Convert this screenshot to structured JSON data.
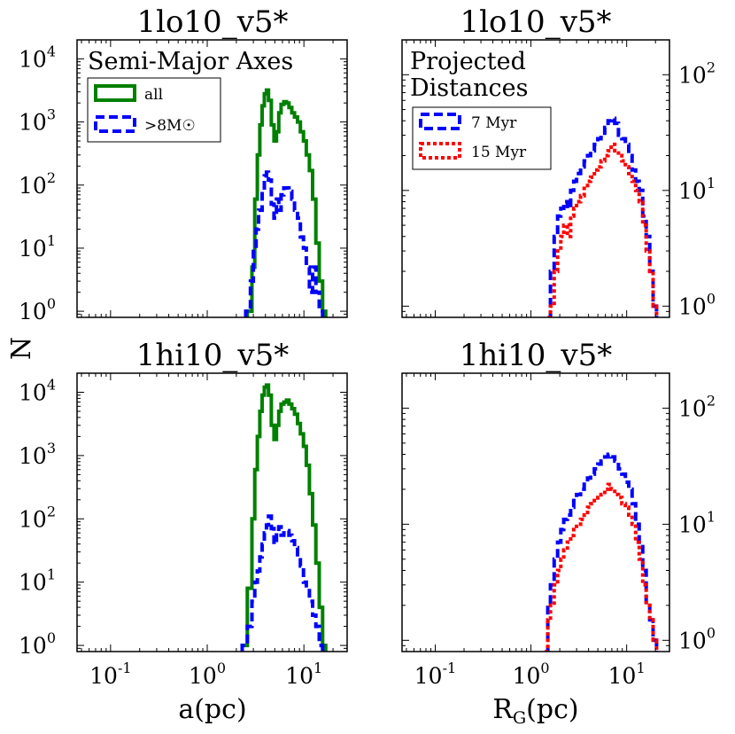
{
  "figure": {
    "ylabel": "N",
    "xlabel_left": "a(pc)",
    "xlabel_right_main": "R",
    "xlabel_right_sub": "G",
    "xlabel_right_rest": "(pc)"
  },
  "chart_data": [
    {
      "type": "line",
      "step": true,
      "title": "1lo10_v5*",
      "textbox": "Semi-Major Axes",
      "xscale": "log",
      "yscale": "log",
      "xlim": [
        0.045,
        28
      ],
      "ylim": [
        0.8,
        20000
      ],
      "xticks": [
        {
          "base": "10",
          "exp": "-1"
        },
        {
          "base": "10",
          "exp": "0"
        },
        {
          "base": "10",
          "exp": "1"
        }
      ],
      "yticks": [
        {
          "base": "10",
          "exp": "0",
          "v": 1
        },
        {
          "base": "10",
          "exp": "1",
          "v": 10
        },
        {
          "base": "10",
          "exp": "2",
          "v": 100
        },
        {
          "base": "10",
          "exp": "3",
          "v": 1000
        },
        {
          "base": "10",
          "exp": "4",
          "v": 10000
        }
      ],
      "yaxis_side": "left",
      "show_xticklabels": false,
      "legend": {
        "location": "upper-left",
        "entries": [
          "all",
          ">8M☉"
        ]
      },
      "series": [
        {
          "name": "all",
          "color": "#008000",
          "dash": "solid",
          "x": [
            2.6,
            2.9,
            3.1,
            3.3,
            3.5,
            3.7,
            3.9,
            4.1,
            4.3,
            4.6,
            4.9,
            5.2,
            5.5,
            5.8,
            6.2,
            6.6,
            7.0,
            7.5,
            8.0,
            8.6,
            9.2,
            9.9,
            10.6,
            11.4,
            12.3,
            13.3,
            14.4,
            15.6,
            16.8
          ],
          "y": [
            1,
            5,
            60,
            300,
            900,
            1800,
            2800,
            3200,
            2200,
            900,
            500,
            700,
            1400,
            1900,
            2100,
            2000,
            1700,
            1400,
            1200,
            1000,
            700,
            500,
            300,
            170,
            60,
            12,
            3,
            1,
            0.8
          ]
        },
        {
          "name": ">8M☉",
          "color": "#0000ff",
          "dash": "dashed",
          "x": [
            2.5,
            2.8,
            3.0,
            3.2,
            3.4,
            3.7,
            3.9,
            4.1,
            4.3,
            4.6,
            4.9,
            5.2,
            5.5,
            5.8,
            6.2,
            6.6,
            7.0,
            7.5,
            8.0,
            8.6,
            9.2,
            9.9,
            10.6,
            11.4,
            12.3,
            13.3,
            14.4,
            15.6
          ],
          "y": [
            1,
            3,
            10,
            20,
            40,
            80,
            140,
            160,
            120,
            50,
            30,
            60,
            40,
            70,
            90,
            90,
            80,
            60,
            40,
            30,
            15,
            10,
            5,
            2,
            5,
            2,
            1,
            0.8
          ]
        }
      ]
    },
    {
      "type": "line",
      "step": true,
      "title": "1lo10_v5*",
      "textbox": "Projected Distances",
      "textbox_lines": [
        "Projected",
        "Distances"
      ],
      "xscale": "log",
      "yscale": "log",
      "xlim": [
        0.045,
        28
      ],
      "ylim": [
        0.8,
        200
      ],
      "xticks": [
        {
          "base": "10",
          "exp": "-1"
        },
        {
          "base": "10",
          "exp": "0"
        },
        {
          "base": "10",
          "exp": "1"
        }
      ],
      "yticks": [
        {
          "base": "10",
          "exp": "0",
          "v": 1
        },
        {
          "base": "10",
          "exp": "1",
          "v": 10
        },
        {
          "base": "10",
          "exp": "2",
          "v": 100
        }
      ],
      "yaxis_side": "right",
      "show_xticklabels": false,
      "legend": {
        "location": "upper-left",
        "entries": [
          "7 Myr",
          "15 Myr"
        ]
      },
      "series": [
        {
          "name": "7 Myr",
          "color": "#0000ff",
          "dash": "dashed",
          "x": [
            1.5,
            1.6,
            1.75,
            1.9,
            2.05,
            2.2,
            2.4,
            2.6,
            2.8,
            3.0,
            3.3,
            3.6,
            3.9,
            4.2,
            4.6,
            5.0,
            5.4,
            5.9,
            6.4,
            6.9,
            7.5,
            8.2,
            8.9,
            9.7,
            10.5,
            11.4,
            12.4,
            13.5,
            14.7,
            16.0,
            17.4,
            18.9,
            20.5
          ],
          "y": [
            0.8,
            2,
            4,
            6,
            7,
            8,
            7,
            10,
            12,
            14,
            16,
            18,
            20,
            22,
            25,
            28,
            30,
            35,
            40,
            42,
            38,
            30,
            28,
            25,
            20,
            15,
            12,
            10,
            6,
            4,
            2,
            1,
            0.8
          ]
        },
        {
          "name": "15 Myr",
          "color": "#ff0000",
          "dash": "dotted",
          "x": [
            1.5,
            1.6,
            1.75,
            1.9,
            2.05,
            2.2,
            2.4,
            2.6,
            2.8,
            3.0,
            3.3,
            3.6,
            3.9,
            4.2,
            4.6,
            5.0,
            5.4,
            5.9,
            6.4,
            6.9,
            7.5,
            8.2,
            8.9,
            9.7,
            10.5,
            11.4,
            12.4,
            13.5,
            14.7,
            16.0,
            17.4,
            18.9,
            20.5
          ],
          "y": [
            0.8,
            1,
            2,
            3,
            4,
            5,
            4,
            6,
            7,
            8,
            9,
            11,
            12,
            13,
            15,
            16,
            18,
            20,
            22,
            25,
            22,
            20,
            18,
            16,
            14,
            12,
            10,
            8,
            5,
            3,
            2,
            1,
            0.8
          ]
        }
      ]
    },
    {
      "type": "line",
      "step": true,
      "title": "1hi10_v5*",
      "xscale": "log",
      "yscale": "log",
      "xlim": [
        0.045,
        28
      ],
      "ylim": [
        0.8,
        20000
      ],
      "xticks": [
        {
          "base": "10",
          "exp": "-1"
        },
        {
          "base": "10",
          "exp": "0"
        },
        {
          "base": "10",
          "exp": "1"
        }
      ],
      "yticks": [
        {
          "base": "10",
          "exp": "0",
          "v": 1
        },
        {
          "base": "10",
          "exp": "1",
          "v": 10
        },
        {
          "base": "10",
          "exp": "2",
          "v": 100
        },
        {
          "base": "10",
          "exp": "3",
          "v": 1000
        },
        {
          "base": "10",
          "exp": "4",
          "v": 10000
        }
      ],
      "yaxis_side": "left",
      "show_xticklabels": true,
      "series": [
        {
          "name": "all",
          "color": "#008000",
          "dash": "solid",
          "x": [
            2.3,
            2.6,
            2.9,
            3.1,
            3.3,
            3.5,
            3.7,
            3.9,
            4.1,
            4.3,
            4.6,
            4.9,
            5.2,
            5.5,
            5.8,
            6.2,
            6.6,
            7.0,
            7.5,
            8.0,
            8.6,
            9.2,
            9.9,
            10.6,
            11.4,
            12.3,
            13.3,
            14.4,
            15.6,
            16.8
          ],
          "y": [
            1,
            8,
            100,
            600,
            2000,
            5000,
            9000,
            12000,
            13000,
            9000,
            3000,
            1800,
            3000,
            5000,
            6500,
            7000,
            7500,
            6500,
            5500,
            4500,
            3200,
            2200,
            1400,
            700,
            250,
            80,
            20,
            4,
            1,
            0.8
          ]
        },
        {
          "name": ">8M☉",
          "color": "#0000ff",
          "dash": "dashed",
          "x": [
            2.3,
            2.6,
            2.9,
            3.1,
            3.3,
            3.5,
            3.7,
            3.9,
            4.1,
            4.3,
            4.6,
            4.9,
            5.2,
            5.5,
            5.8,
            6.2,
            6.6,
            7.0,
            7.5,
            8.0,
            8.6,
            9.2,
            9.9,
            10.6,
            11.4,
            12.3,
            13.3,
            14.4,
            15.6
          ],
          "y": [
            1,
            2,
            5,
            10,
            15,
            25,
            40,
            60,
            80,
            110,
            70,
            40,
            60,
            75,
            55,
            60,
            65,
            55,
            45,
            35,
            25,
            18,
            10,
            8,
            5,
            3,
            2,
            1,
            0.8
          ]
        }
      ]
    },
    {
      "type": "line",
      "step": true,
      "title": "1hi10_v5*",
      "xscale": "log",
      "yscale": "log",
      "xlim": [
        0.045,
        28
      ],
      "ylim": [
        0.8,
        200
      ],
      "xticks": [
        {
          "base": "10",
          "exp": "-1"
        },
        {
          "base": "10",
          "exp": "0"
        },
        {
          "base": "10",
          "exp": "1"
        }
      ],
      "yticks": [
        {
          "base": "10",
          "exp": "0",
          "v": 1
        },
        {
          "base": "10",
          "exp": "1",
          "v": 10
        },
        {
          "base": "10",
          "exp": "2",
          "v": 100
        }
      ],
      "yaxis_side": "right",
      "show_xticklabels": true,
      "series": [
        {
          "name": "7 Myr",
          "color": "#0000ff",
          "dash": "dashed",
          "x": [
            1.4,
            1.5,
            1.6,
            1.75,
            1.9,
            2.05,
            2.2,
            2.4,
            2.6,
            2.8,
            3.0,
            3.3,
            3.6,
            3.9,
            4.2,
            4.6,
            5.0,
            5.4,
            5.9,
            6.4,
            6.9,
            7.5,
            8.2,
            8.9,
            9.7,
            10.5,
            11.4,
            12.4,
            13.5,
            14.7,
            16.0,
            17.4,
            18.9,
            20.5
          ],
          "y": [
            0.8,
            2,
            3,
            5,
            7,
            9,
            11,
            12,
            14,
            16,
            18,
            20,
            23,
            25,
            27,
            30,
            33,
            35,
            38,
            40,
            38,
            35,
            30,
            27,
            23,
            20,
            15,
            10,
            7,
            4,
            2,
            1.5,
            1,
            0.8
          ]
        },
        {
          "name": "15 Myr",
          "color": "#ff0000",
          "dash": "dotted",
          "x": [
            1.4,
            1.5,
            1.6,
            1.75,
            1.9,
            2.05,
            2.2,
            2.4,
            2.6,
            2.8,
            3.0,
            3.3,
            3.6,
            3.9,
            4.2,
            4.6,
            5.0,
            5.4,
            5.9,
            6.4,
            6.9,
            7.5,
            8.2,
            8.9,
            9.7,
            10.5,
            11.4,
            12.4,
            13.5,
            14.7,
            16.0,
            17.4,
            18.9,
            20.5
          ],
          "y": [
            0.8,
            1.5,
            2,
            3,
            4,
            5,
            6,
            7,
            8,
            9,
            10,
            11,
            12,
            14,
            15,
            16,
            17,
            18,
            20,
            22,
            20,
            18,
            17,
            15,
            14,
            12,
            10,
            7,
            5,
            3,
            2,
            1.5,
            1,
            0.8
          ]
        }
      ]
    }
  ]
}
